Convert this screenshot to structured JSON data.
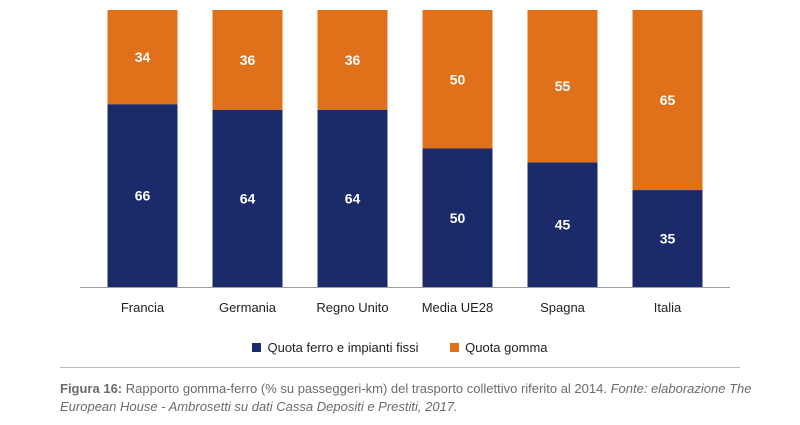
{
  "chart_data": {
    "type": "bar",
    "stacked": true,
    "categories": [
      "Francia",
      "Germania",
      "Regno Unito",
      "Media UE28",
      "Spagna",
      "Italia"
    ],
    "series": [
      {
        "name": "Quota ferro e impianti fissi",
        "color": "#1b2a68",
        "values": [
          66,
          64,
          64,
          50,
          45,
          35
        ]
      },
      {
        "name": "Quota gomma",
        "color": "#e0701a",
        "values": [
          34,
          36,
          36,
          50,
          55,
          65
        ]
      }
    ],
    "ylim": [
      0,
      100
    ],
    "grid": false,
    "legend_position": "bottom"
  },
  "caption": {
    "label": "Figura 16:",
    "text": "Rapporto gomma-ferro (% su passeggeri-km) del trasporto collettivo riferito al 2014.",
    "source": "Fonte: elaborazione The European House - Ambrosetti su dati Cassa Depositi e Prestiti, 2017."
  }
}
